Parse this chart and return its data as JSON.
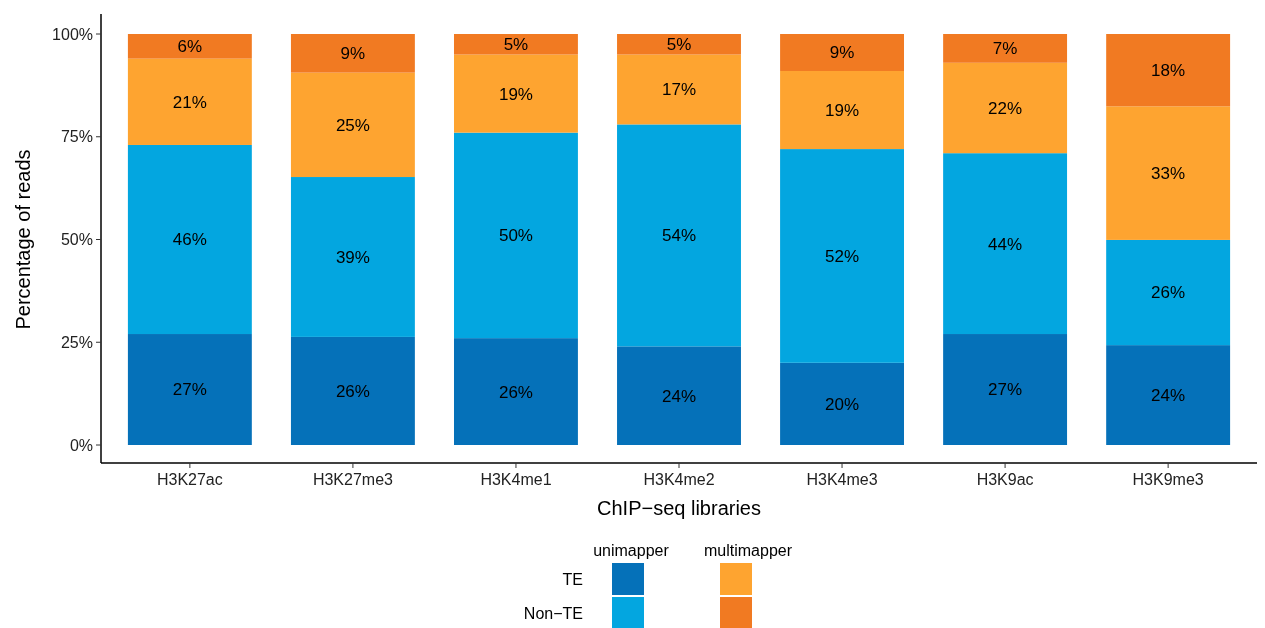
{
  "chart_data": {
    "type": "bar",
    "stacked": true,
    "xlabel": "ChIP−seq libraries",
    "ylabel": "Percentage of reads",
    "categories": [
      "H3K27ac",
      "H3K27me3",
      "H3K4me1",
      "H3K4me2",
      "H3K4me3",
      "H3K9ac",
      "H3K9me3"
    ],
    "series": [
      {
        "name": "TE",
        "color": "#0571b9",
        "values": [
          27,
          26.3,
          26,
          24,
          20,
          27,
          24.3
        ],
        "value_labels": [
          "27%",
          "26%",
          "26%",
          "24%",
          "20%",
          "27%",
          "24%"
        ]
      },
      {
        "name": "Non−TE",
        "color": "#03a6e0",
        "values": [
          46,
          38.9,
          50,
          54,
          52,
          44,
          25.6
        ],
        "value_labels": [
          "46%",
          "39%",
          "50%",
          "54%",
          "52%",
          "44%",
          "26%"
        ]
      },
      {
        "color": "#fea430",
        "values": [
          21,
          25.4,
          19,
          17,
          19,
          22,
          32.5
        ],
        "value_labels": [
          "21%",
          "25%",
          "19%",
          "17%",
          "19%",
          "22%",
          "33%"
        ]
      },
      {
        "color": "#f17a22",
        "values": [
          6,
          9.4,
          5,
          5,
          9,
          7,
          17.6
        ],
        "value_labels": [
          "6%",
          "9%",
          "5%",
          "5%",
          "9%",
          "7%",
          "18%"
        ]
      }
    ],
    "ylim": [
      0,
      100
    ],
    "yticks": [
      {
        "value": 0,
        "label": "0%"
      },
      {
        "value": 25,
        "label": "25%"
      },
      {
        "value": 50,
        "label": "50%"
      },
      {
        "value": 75,
        "label": "75%"
      },
      {
        "value": 100,
        "label": "100%"
      }
    ],
    "legend": "bottom",
    "annotations": [
      "unimapper",
      "multimapper"
    ]
  }
}
